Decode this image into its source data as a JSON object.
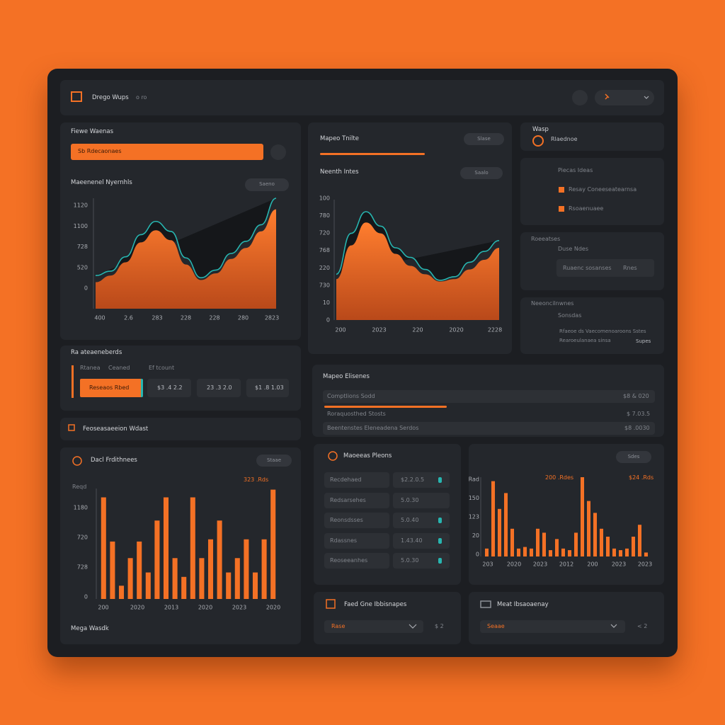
{
  "header": {
    "title": "Drego Wups",
    "meta": "o ro"
  },
  "filters": {
    "title": "Fiewe Waenas",
    "search": "Sb Rdecaonaes",
    "chart_title": "Maeenenel Nyernhls",
    "chart_button": "Saeno"
  },
  "trend_chart": {
    "type": "area",
    "color": "#f47125",
    "line_color": "#27b5b0",
    "ylim": [
      0,
      100
    ],
    "y_labels": [
      "1120",
      "1100",
      "728",
      "520",
      "0"
    ],
    "x_labels": [
      "400",
      "2.6",
      "283",
      "228",
      "228",
      "280",
      "2823"
    ],
    "values": [
      24,
      30,
      42,
      60,
      71,
      62,
      40,
      26,
      32,
      45,
      55,
      70,
      90
    ],
    "line_values": [
      30,
      34,
      47,
      67,
      79,
      70,
      46,
      28,
      35,
      50,
      61,
      76,
      100
    ]
  },
  "tabs_panel": {
    "title": "Ra ateaeneberds",
    "tabs": [
      "Rtanea",
      "Ceaned",
      "Ef tcount"
    ],
    "button": "Reseaos Rbed",
    "stats": [
      "$3 .4 2.2",
      "23 .3 2.0",
      "$1 .8 1.03"
    ]
  },
  "section": {
    "title": "Feoseasaeeion Wdast"
  },
  "bar_chart_left": {
    "type": "bar",
    "title": "Dacl Frdithnees",
    "button": "Staae",
    "annotation": "323 .Rds",
    "y_title": "Reqd",
    "color": "#f47125",
    "ylim": [
      0,
      100
    ],
    "y_labels": [
      "1180",
      "720",
      "728",
      "0"
    ],
    "x_labels": [
      "200",
      "2020",
      "2013",
      "2020",
      "2023",
      "2020"
    ],
    "values": [
      92,
      52,
      12,
      37,
      52,
      24,
      71,
      92,
      37,
      20,
      92,
      37,
      54,
      71,
      24,
      37,
      54,
      24,
      54,
      99
    ],
    "footer": "Mega Wasdk"
  },
  "middle_panel": {
    "title": "Mapeo Tnilte",
    "button": "Slase",
    "progress": 57,
    "chart_title": "Neenth Intes",
    "chart_button": "Saalo"
  },
  "peak_chart": {
    "type": "area",
    "color": "#f47125",
    "line_color": "#27b5b0",
    "ylim": [
      0,
      100
    ],
    "y_labels": [
      "100",
      "780",
      "720",
      "768",
      "220",
      "730",
      "10",
      "0"
    ],
    "x_labels": [
      "200",
      "2023",
      "220",
      "2020",
      "2228"
    ],
    "values": [
      34,
      62,
      81,
      72,
      55,
      45,
      38,
      32,
      34,
      42,
      50,
      60
    ],
    "line_values": [
      38,
      72,
      90,
      78,
      60,
      52,
      42,
      33,
      36,
      48,
      57,
      66
    ]
  },
  "summary": {
    "title": "Mapeo Elisenes",
    "rows": [
      {
        "label": "Comptlions Sodd",
        "value": "$8 & 020"
      },
      {
        "label": "Roraquosthed Stosts",
        "value": "$ 7.03.5"
      },
      {
        "label": "Beentenstes Eleneadena Serdos",
        "value": "$8 .0030"
      }
    ],
    "progress": 37
  },
  "side_top": {
    "title": "Wasp",
    "item": "Rlaednoe"
  },
  "side_list": {
    "title": "Piecas Ideas",
    "items": [
      "Resay Coneeseatearnsa",
      "Rsoaenuaee"
    ]
  },
  "side_form": {
    "title": "Roeeatses",
    "label": "Duse Ndes",
    "input": "Ruaenc sosanses",
    "action": "Rnes"
  },
  "side_notes": {
    "title": "Neeoncilnwnes",
    "subtitle": "Sonsdas",
    "lines": [
      "Rfaeoe ds Vaecomenoaroons Sstes",
      "Rearoeulanaea sinsa"
    ],
    "action": "Supes"
  },
  "table": {
    "title": "Maoeeas Pleons",
    "rows": [
      [
        "Recdehaed",
        "$2.2.0.5"
      ],
      [
        "Redsarsehes",
        "5.0.30"
      ],
      [
        "Reonsdsses",
        "5.0.40"
      ],
      [
        "Rdassnes",
        "1.43.40"
      ],
      [
        "Reoseeanhes",
        "5.0.30"
      ]
    ]
  },
  "bar_chart_right": {
    "type": "bar",
    "button": "Sdes",
    "annotations": [
      "200 .Rdes",
      "$24 .Rds"
    ],
    "color": "#f47125",
    "ylim": [
      0,
      100
    ],
    "y_labels": [
      "Rad",
      "150",
      "123",
      "20",
      "0"
    ],
    "x_labels": [
      "203",
      "2020",
      "2023",
      "2012",
      "200",
      "2023",
      "2023"
    ],
    "values": [
      10,
      95,
      60,
      80,
      35,
      10,
      12,
      10,
      35,
      30,
      8,
      22,
      10,
      8,
      30,
      100,
      70,
      55,
      35,
      25,
      10,
      8,
      10,
      25,
      40,
      5
    ]
  },
  "footer_left": {
    "title": "Faed Gne Ibbisnapes",
    "select": "Rase",
    "aside": "$ 2"
  },
  "footer_right": {
    "title": "Meat Ibsaoaenay",
    "select": "Seaae",
    "aside": "< 2"
  }
}
